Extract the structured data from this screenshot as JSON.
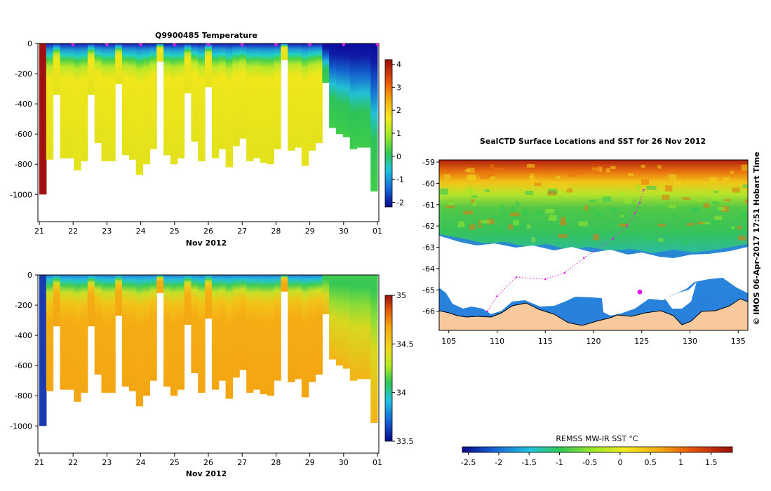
{
  "chart_data": [
    {
      "type": "heatmap",
      "title": "Q9900485  Temperature",
      "xlabel": "Nov 2012",
      "ylabel": "",
      "xticks": [
        "21",
        "22",
        "23",
        "24",
        "25",
        "26",
        "27",
        "28",
        "29",
        "30",
        "01"
      ],
      "yticks": [
        "0",
        "-200",
        "-400",
        "-600",
        "-800",
        "-1000"
      ],
      "ylim": [
        -1180,
        0
      ],
      "colorbar": {
        "ticks": [
          "4",
          "3",
          "2",
          "1",
          "0",
          "-1",
          "-2"
        ],
        "range": [
          -2.2,
          4.2
        ]
      },
      "profile_depths_m": [
        1000,
        770,
        340,
        760,
        760,
        840,
        780,
        340,
        660,
        780,
        780,
        270,
        740,
        770,
        870,
        800,
        700,
        120,
        740,
        800,
        760,
        330,
        650,
        780,
        290,
        760,
        700,
        820,
        680,
        630,
        780,
        760,
        790,
        800,
        700,
        110,
        710,
        690,
        810,
        710,
        660,
        260,
        560,
        600,
        620,
        700,
        690,
        690,
        980
      ]
    },
    {
      "type": "heatmap",
      "title": "",
      "xlabel": "Nov 2012",
      "ylabel": "",
      "xticks": [
        "21",
        "22",
        "23",
        "24",
        "25",
        "26",
        "27",
        "28",
        "29",
        "30",
        "01"
      ],
      "yticks": [
        "0",
        "-200",
        "-400",
        "-600",
        "-800",
        "-1000"
      ],
      "ylim": [
        -1180,
        0
      ],
      "colorbar": {
        "ticks": [
          "35",
          "34.5",
          "34",
          "33.5"
        ],
        "range": [
          33.5,
          35
        ]
      },
      "profile_depths_m": [
        1000,
        770,
        340,
        760,
        760,
        840,
        780,
        340,
        660,
        780,
        780,
        270,
        740,
        770,
        870,
        800,
        700,
        120,
        740,
        800,
        760,
        330,
        650,
        780,
        290,
        760,
        700,
        820,
        680,
        630,
        780,
        760,
        790,
        800,
        700,
        110,
        710,
        690,
        810,
        710,
        660,
        260,
        560,
        600,
        620,
        700,
        690,
        690,
        980
      ]
    },
    {
      "type": "heatmap",
      "title": "SealCTD Surface Locations and SST for 26 Nov 2012",
      "xlabel": "",
      "ylabel": "",
      "xticks": [
        "105",
        "110",
        "115",
        "120",
        "125",
        "130",
        "135"
      ],
      "yticks": [
        "-59",
        "-60",
        "-61",
        "-62",
        "-63",
        "-64",
        "-65",
        "-66"
      ],
      "xlim": [
        104,
        136
      ],
      "ylim": [
        -66.9,
        -58.9
      ],
      "colorbar": {
        "label": "REMSS MW-IR SST °C",
        "ticks": [
          "-2.5",
          "-2",
          "-1.5",
          "-1",
          "-0.5",
          "0",
          "0.5",
          "1",
          "1.5"
        ],
        "range": [
          -2.6,
          1.85
        ]
      },
      "seal_track": [
        [
          109,
          -66.0
        ],
        [
          110,
          -65.3
        ],
        [
          112,
          -64.4
        ],
        [
          115,
          -64.5
        ],
        [
          117,
          -64.2
        ],
        [
          119,
          -63.5
        ],
        [
          122,
          -62.6
        ],
        [
          123.5,
          -62.0
        ],
        [
          124.3,
          -61.4
        ],
        [
          124.8,
          -60.9
        ],
        [
          125.2,
          -60.3
        ]
      ],
      "current_location": [
        124.8,
        -65.1
      ],
      "side_note": "© IMOS 06-Apr-2017 17:51 Hobart Time"
    }
  ]
}
